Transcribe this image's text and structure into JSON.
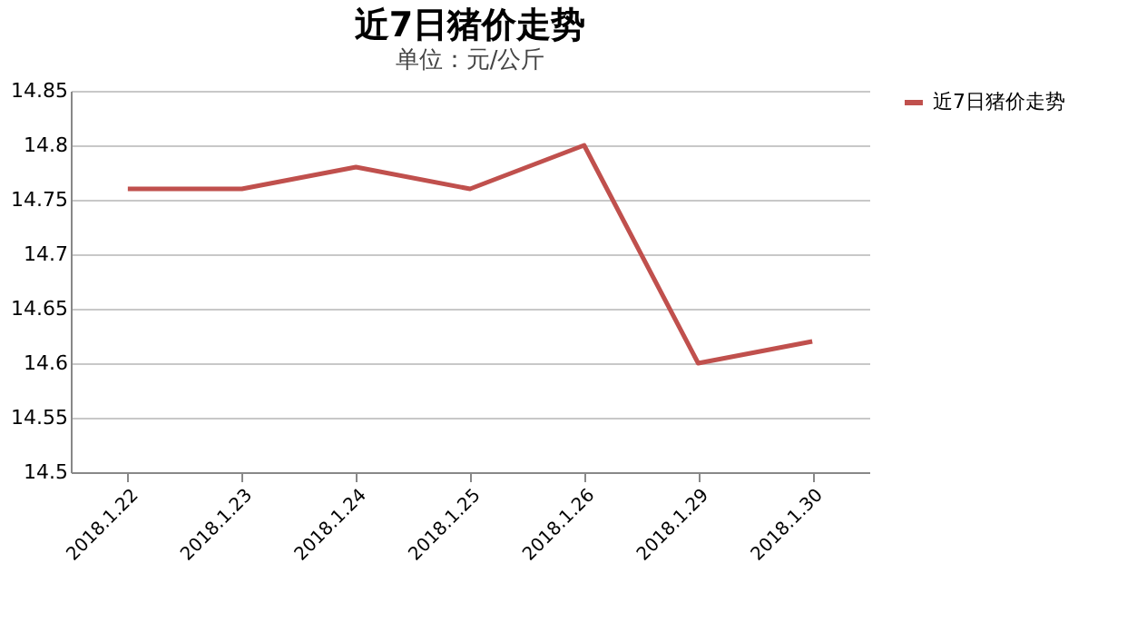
{
  "chart_data": {
    "type": "line",
    "title": "近7日猪价走势",
    "annotations": [
      "单位：元/公斤"
    ],
    "categories": [
      "2018.1.22",
      "2018.1.23",
      "2018.1.24",
      "2018.1.25",
      "2018.1.26",
      "2018.1.29",
      "2018.1.30"
    ],
    "series": [
      {
        "name": "近7日猪价走势",
        "color": "#c0504d",
        "values": [
          14.76,
          14.76,
          14.78,
          14.76,
          14.8,
          14.6,
          14.62
        ]
      }
    ],
    "ylim": [
      14.5,
      14.85
    ],
    "yticks": [
      14.5,
      14.55,
      14.6,
      14.65,
      14.7,
      14.75,
      14.8,
      14.85
    ],
    "grid": "y",
    "legend": "right",
    "marker": "none",
    "line_style": "solid"
  }
}
